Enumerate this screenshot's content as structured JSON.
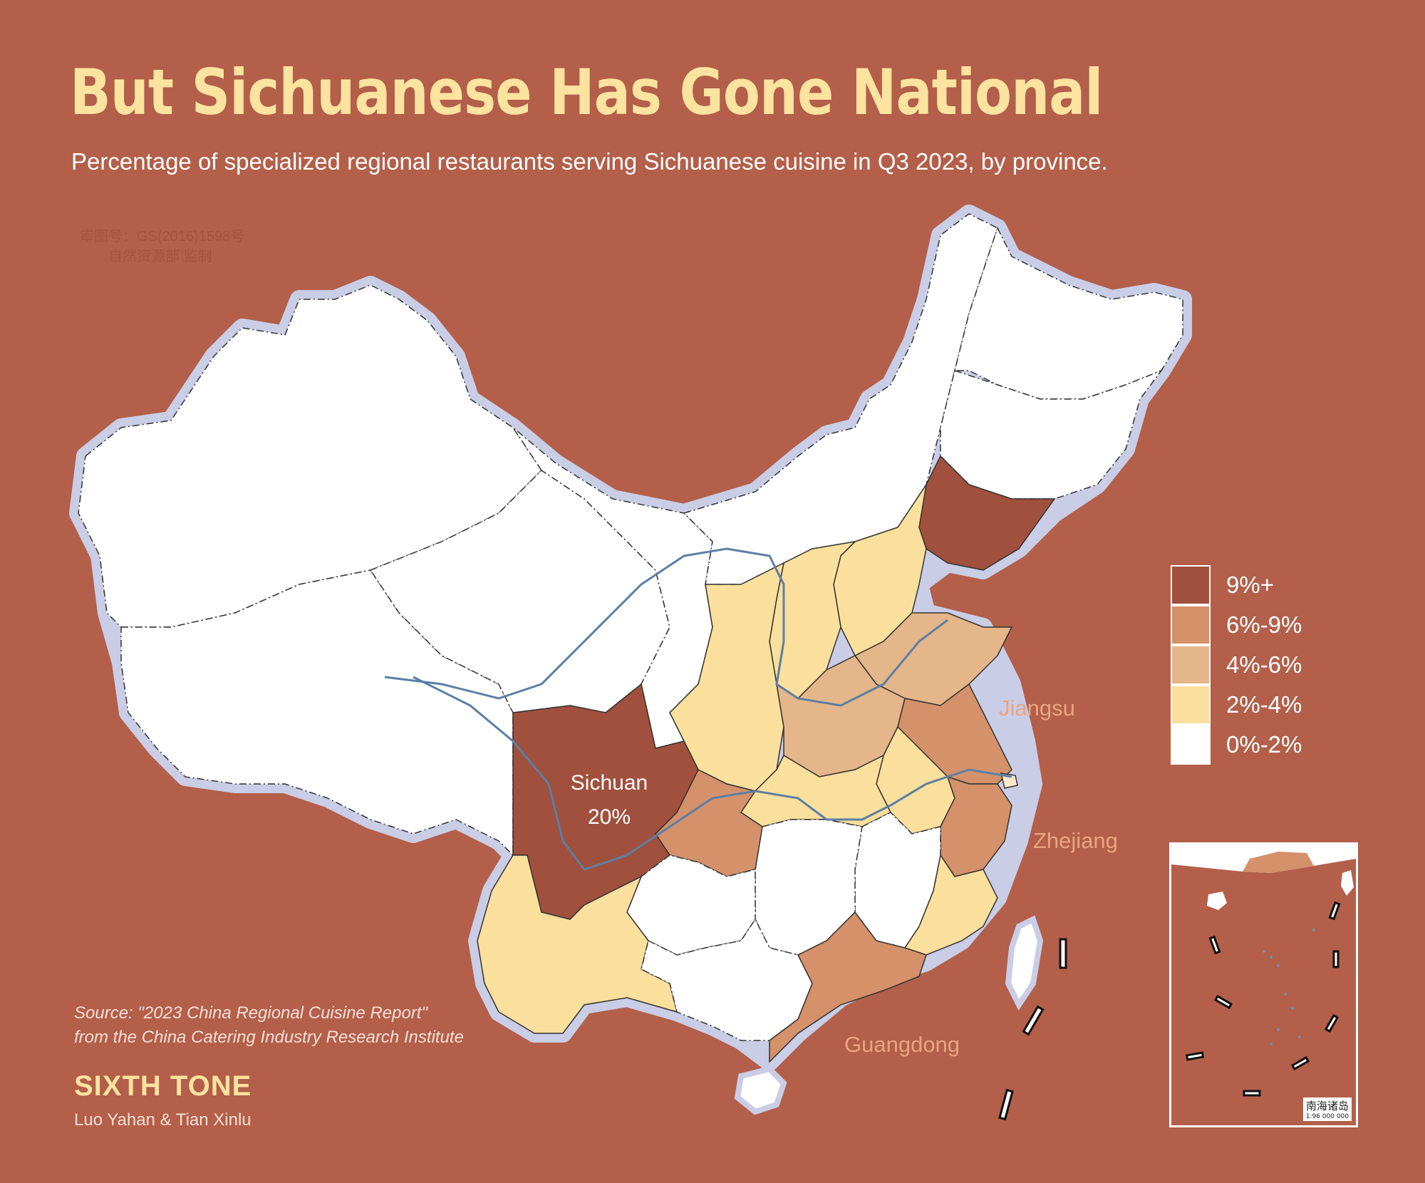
{
  "title": "But Sichuanese Has Gone National",
  "subtitle": "Percentage of specialized regional restaurants serving Sichuanese cuisine in Q3 2023, by province.",
  "watermark": [
    "审图号：GS(2016)1598号",
    "自然资源部 监制"
  ],
  "colors": {
    "background": "#b35f4a",
    "title": "#fde3a0",
    "border_halo": "#c9cde6",
    "river": "#5a7fa6",
    "bin_9_plus": "#a0503c",
    "bin_6_9": "#d4916a",
    "bin_4_6": "#e5b689",
    "bin_2_4": "#fbdf9c",
    "bin_0_2": "#ffffff"
  },
  "legend": [
    {
      "label": "9%+",
      "color": "#a0503c"
    },
    {
      "label": "6%-9%",
      "color": "#d4916a"
    },
    {
      "label": "4%-6%",
      "color": "#e5b689"
    },
    {
      "label": "2%-4%",
      "color": "#fbdf9c"
    },
    {
      "label": "0%-2%",
      "color": "#ffffff"
    }
  ],
  "annotations": {
    "sichuan_name": "Sichuan",
    "sichuan_value": "20%",
    "jiangsu": "Jiangsu",
    "zhejiang": "Zhejiang",
    "guangdong": "Guangdong"
  },
  "provinces": [
    {
      "name": "Sichuan",
      "bin": "9%+"
    },
    {
      "name": "Chongqing",
      "bin": "6%-9%"
    },
    {
      "name": "Guangdong",
      "bin": "6%-9%"
    },
    {
      "name": "Zhejiang",
      "bin": "6%-9%"
    },
    {
      "name": "Jiangsu",
      "bin": "6%-9%"
    },
    {
      "name": "Liaoning",
      "bin": "9%+"
    },
    {
      "name": "Shandong",
      "bin": "4%-6%"
    },
    {
      "name": "Henan",
      "bin": "4%-6%"
    },
    {
      "name": "Yunnan",
      "bin": "2%-4%"
    },
    {
      "name": "Shaanxi",
      "bin": "2%-4%"
    },
    {
      "name": "Hubei",
      "bin": "2%-4%"
    },
    {
      "name": "Anhui",
      "bin": "2%-4%"
    },
    {
      "name": "Fujian",
      "bin": "2%-4%"
    },
    {
      "name": "Shanxi",
      "bin": "2%-4%"
    },
    {
      "name": "Hebei",
      "bin": "2%-4%"
    },
    {
      "name": "Xinjiang",
      "bin": "0%-2%"
    },
    {
      "name": "Tibet",
      "bin": "0%-2%"
    },
    {
      "name": "Qinghai",
      "bin": "0%-2%"
    },
    {
      "name": "Gansu",
      "bin": "0%-2%"
    },
    {
      "name": "Inner Mongolia",
      "bin": "0%-2%"
    },
    {
      "name": "Heilongjiang",
      "bin": "0%-2%"
    },
    {
      "name": "Jilin",
      "bin": "0%-2%"
    },
    {
      "name": "Guizhou",
      "bin": "0%-2%"
    },
    {
      "name": "Guangxi",
      "bin": "0%-2%"
    },
    {
      "name": "Hunan",
      "bin": "0%-2%"
    },
    {
      "name": "Jiangxi",
      "bin": "0%-2%"
    },
    {
      "name": "Hainan",
      "bin": "0%-2%"
    },
    {
      "name": "Taiwan",
      "bin": "0%-2%"
    }
  ],
  "source": [
    "Source: \"2023 China Regional Cuisine Report\"",
    "from the China Catering Industry Research Institute"
  ],
  "brand": "SIXTH TONE",
  "credit": "Luo Yahan & Tian Xinlu",
  "inset": {
    "name": "南海诸岛",
    "scale": "1:96 000 000"
  }
}
